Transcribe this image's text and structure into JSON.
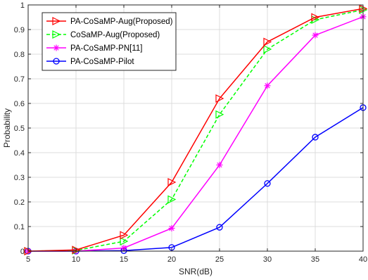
{
  "chart_data": {
    "type": "line",
    "xlabel": "SNR(dB)",
    "ylabel": "Probability",
    "x": [
      5,
      10,
      15,
      20,
      25,
      30,
      35,
      40
    ],
    "xlim": [
      5,
      40
    ],
    "ylim": [
      0,
      1
    ],
    "xticks": [
      "5",
      "10",
      "15",
      "20",
      "25",
      "30",
      "35",
      "40"
    ],
    "yticks": [
      "0",
      "0.1",
      "0.2",
      "0.3",
      "0.4",
      "0.5",
      "0.6",
      "0.7",
      "0.8",
      "0.9",
      "1"
    ],
    "grid": true,
    "legend_position": "top-left",
    "series": [
      {
        "name": "PA-CoSaMP-Aug(Proposed)",
        "color": "#ff0000",
        "marker": "triangle-right",
        "line_style": "solid",
        "values": [
          0.0,
          0.005,
          0.065,
          0.28,
          0.62,
          0.85,
          0.95,
          0.985
        ]
      },
      {
        "name": "CoSaMP-Aug(Proposed)",
        "color": "#00ff00",
        "marker": "triangle-right",
        "line_style": "dashed",
        "values": [
          0.0,
          0.003,
          0.04,
          0.21,
          0.555,
          0.82,
          0.94,
          0.98
        ]
      },
      {
        "name": "PA-CoSaMP-PN[11]",
        "color": "#ff00ff",
        "marker": "asterisk",
        "line_style": "solid",
        "values": [
          0.0,
          0.0,
          0.013,
          0.093,
          0.35,
          0.672,
          0.877,
          0.952
        ]
      },
      {
        "name": "PA-CoSaMP-Pilot",
        "color": "#0000ff",
        "marker": "circle",
        "line_style": "solid",
        "values": [
          0.0,
          0.0,
          0.002,
          0.015,
          0.097,
          0.275,
          0.463,
          0.583
        ]
      }
    ]
  }
}
